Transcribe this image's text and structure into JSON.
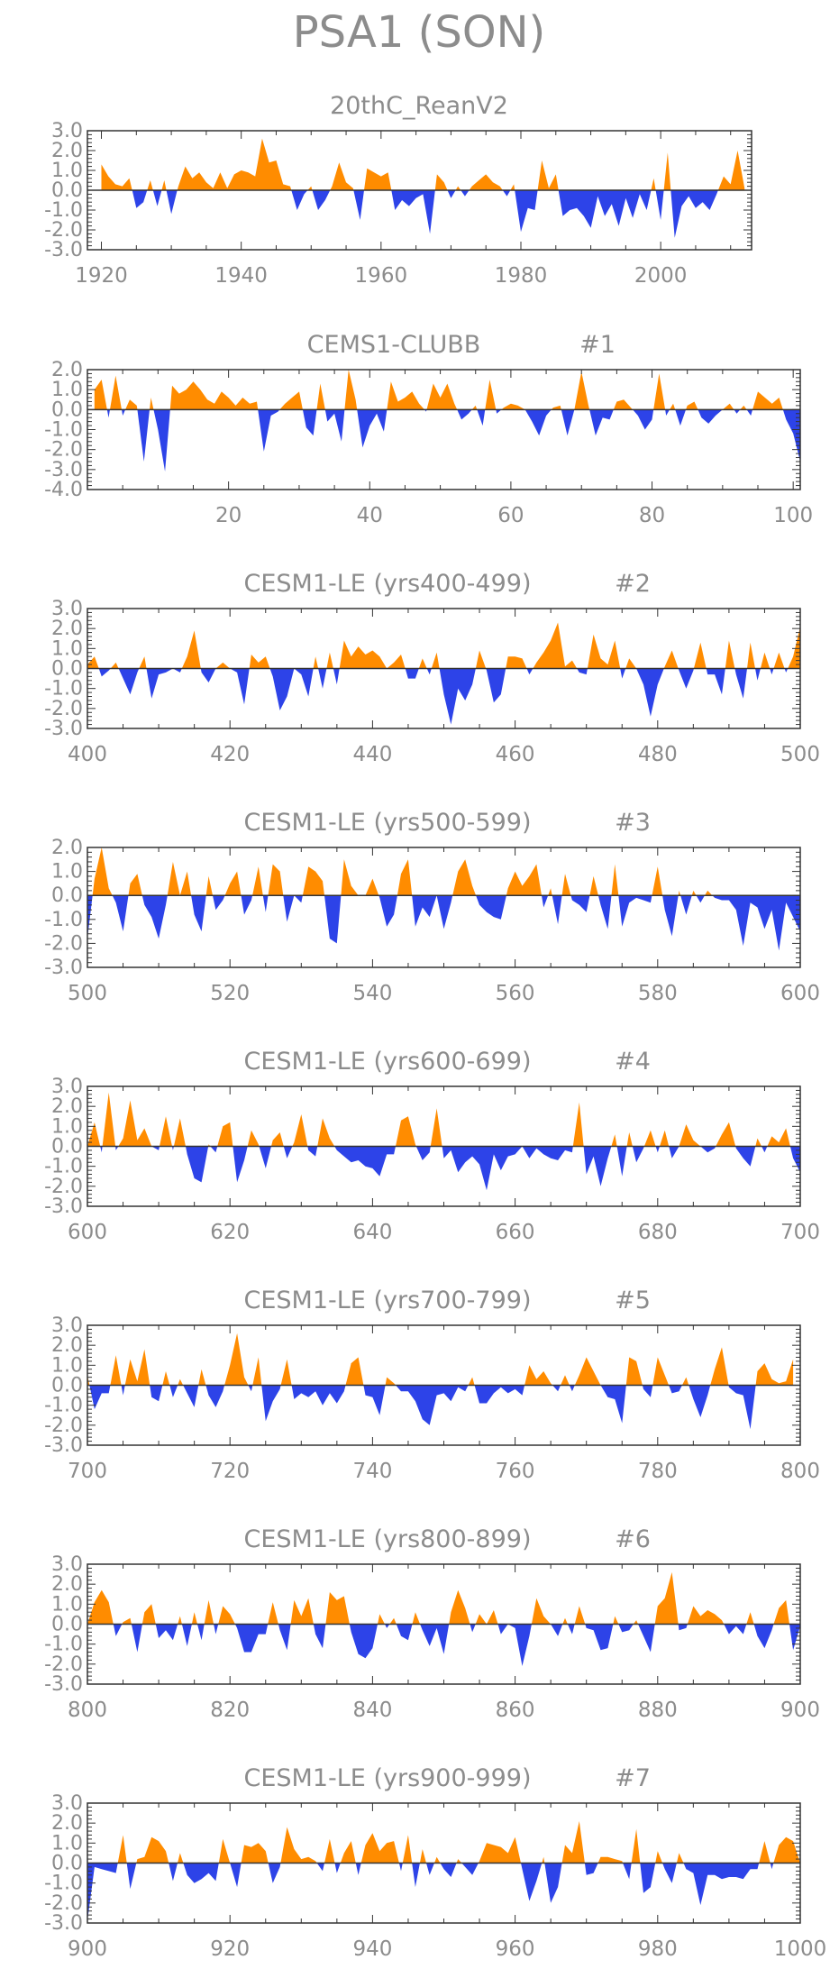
{
  "figure_title": "PSA1 (SON)",
  "colors": {
    "positive": "#ff8c00",
    "negative": "#2d43e8",
    "text": "#8c8c8c",
    "axis": "#333333"
  },
  "chart_data": [
    {
      "type": "area",
      "title": "20thC_ReanV2",
      "xlim": [
        1918,
        2013
      ],
      "ylim": [
        -3.0,
        3.0
      ],
      "yticks": [
        "3.0",
        "2.0",
        "1.0",
        "0.0",
        "-1.0",
        "-2.0",
        "-3.0"
      ],
      "ytick_values": [
        3,
        2,
        1,
        0,
        -1,
        -2,
        -3
      ],
      "xticks": [
        "1920",
        "1940",
        "1960",
        "1980",
        "2000"
      ],
      "xtick_values": [
        1920,
        1940,
        1960,
        1980,
        2000
      ],
      "x_start": 1920,
      "values": [
        1.3,
        0.7,
        0.3,
        0.2,
        0.6,
        -0.9,
        -0.6,
        0.5,
        -0.8,
        0.5,
        -1.2,
        0.2,
        1.2,
        0.6,
        0.9,
        0.4,
        0.1,
        0.9,
        0.1,
        0.8,
        1.0,
        0.9,
        0.7,
        2.6,
        1.4,
        1.5,
        0.3,
        0.2,
        -1.0,
        -0.2,
        0.2,
        -1.0,
        -0.5,
        0.2,
        1.4,
        0.4,
        0.1,
        -1.5,
        1.1,
        0.9,
        0.7,
        0.9,
        -1.0,
        -0.5,
        -0.8,
        -0.4,
        -0.2,
        -2.2,
        0.8,
        0.4,
        -0.4,
        0.2,
        -0.3,
        0.2,
        0.5,
        0.8,
        0.4,
        0.2,
        -0.3,
        0.3,
        -2.1,
        -0.9,
        -1.0,
        1.5,
        0.1,
        0.8,
        -1.3,
        -1.0,
        -0.9,
        -1.3,
        -1.9,
        -0.3,
        -1.3,
        -0.7,
        -1.8,
        -0.4,
        -1.4,
        -0.2,
        -1.0,
        0.6,
        -1.5,
        1.9,
        -2.4,
        -0.8,
        -0.3,
        -0.9,
        -0.6,
        -1.0,
        -0.2,
        0.7,
        0.3,
        2.0,
        0.1
      ]
    },
    {
      "type": "area",
      "title": "CEMS1-CLUBB",
      "label": "#1",
      "xlim": [
        0,
        101
      ],
      "ylim": [
        -4.0,
        2.0
      ],
      "yticks": [
        "2.0",
        "1.0",
        "0.0",
        "-1.0",
        "-2.0",
        "-3.0",
        "-4.0"
      ],
      "ytick_values": [
        2,
        1,
        0,
        -1,
        -2,
        -3,
        -4
      ],
      "xticks": [
        "20",
        "40",
        "60",
        "80",
        "100"
      ],
      "xtick_values": [
        20,
        40,
        60,
        80,
        100
      ],
      "x_start": 1,
      "values": [
        1.0,
        1.5,
        -0.4,
        1.7,
        -0.3,
        0.5,
        0.2,
        -2.6,
        0.6,
        -1.0,
        -3.1,
        1.2,
        0.8,
        1.0,
        1.4,
        1.0,
        0.5,
        0.3,
        0.9,
        0.6,
        0.2,
        0.6,
        0.3,
        0.4,
        -2.1,
        -0.3,
        -0.1,
        0.3,
        0.6,
        0.9,
        -0.9,
        -1.3,
        1.3,
        -0.6,
        -0.2,
        -1.6,
        2.0,
        0.5,
        -1.9,
        -0.8,
        -0.2,
        -1.1,
        1.4,
        0.4,
        0.6,
        0.9,
        0.3,
        -0.1,
        1.3,
        0.6,
        1.3,
        0.3,
        -0.5,
        -0.2,
        0.2,
        -0.8,
        1.5,
        -0.2,
        0.1,
        0.3,
        0.2,
        0.0,
        -0.6,
        -1.3,
        -0.3,
        0.1,
        0.2,
        -1.3,
        0.0,
        1.9,
        0.2,
        -1.3,
        -0.4,
        -0.5,
        0.4,
        0.5,
        0.1,
        -0.3,
        -1.0,
        -0.5,
        1.8,
        -0.3,
        0.3,
        -0.8,
        0.2,
        0.4,
        -0.4,
        -0.7,
        -0.3,
        0.0,
        0.3,
        -0.2,
        0.2,
        -0.3,
        0.9,
        0.6,
        0.3,
        0.6,
        -0.5,
        -1.2,
        -2.6
      ]
    },
    {
      "type": "area",
      "title": "CESM1-LE (yrs400-499)",
      "label": "#2",
      "xlim": [
        400,
        500
      ],
      "ylim": [
        -3.0,
        3.0
      ],
      "yticks": [
        "3.0",
        "2.0",
        "1.0",
        "0.0",
        "-1.0",
        "-2.0",
        "-3.0"
      ],
      "ytick_values": [
        3,
        2,
        1,
        0,
        -1,
        -2,
        -3
      ],
      "xticks": [
        "400",
        "420",
        "440",
        "460",
        "480",
        "500"
      ],
      "xtick_values": [
        400,
        420,
        440,
        460,
        480,
        500
      ],
      "x_start": 400,
      "values": [
        0.2,
        0.6,
        -0.4,
        -0.1,
        0.3,
        -0.5,
        -1.3,
        -0.2,
        0.6,
        -1.5,
        -0.3,
        -0.2,
        0.0,
        -0.2,
        0.6,
        1.9,
        -0.2,
        -0.7,
        0.0,
        0.3,
        0.0,
        -0.2,
        -1.8,
        0.7,
        0.3,
        0.6,
        -0.4,
        -2.1,
        -1.4,
        0.0,
        -0.3,
        -1.4,
        0.6,
        -1.0,
        0.8,
        -0.8,
        1.4,
        0.6,
        1.1,
        0.7,
        0.9,
        0.6,
        0.0,
        0.3,
        0.7,
        -0.5,
        -0.5,
        0.5,
        -0.3,
        0.8,
        -1.3,
        -2.8,
        -1.0,
        -1.6,
        -0.8,
        0.9,
        -0.1,
        -1.7,
        -1.3,
        0.6,
        0.6,
        0.5,
        -0.3,
        0.3,
        0.8,
        1.4,
        2.3,
        0.1,
        0.4,
        -0.2,
        -0.3,
        1.7,
        0.5,
        0.2,
        1.4,
        -0.5,
        0.5,
        0.0,
        -0.8,
        -2.4,
        -0.8,
        0.1,
        0.9,
        -0.1,
        -1.0,
        -0.1,
        1.3,
        -0.3,
        -0.3,
        -1.3,
        1.4,
        -0.3,
        -1.5,
        1.3,
        -0.6,
        0.8,
        -0.3,
        0.8,
        -0.2,
        0.6,
        2.1
      ]
    },
    {
      "type": "area",
      "title": "CESM1-LE (yrs500-599)",
      "label": "#3",
      "xlim": [
        500,
        600
      ],
      "ylim": [
        -3.0,
        2.0
      ],
      "yticks": [
        "2.0",
        "1.0",
        "0.0",
        "-1.0",
        "-2.0",
        "-3.0"
      ],
      "ytick_values": [
        2,
        1,
        0,
        -1,
        -2,
        -3
      ],
      "xticks": [
        "500",
        "520",
        "540",
        "560",
        "580",
        "600"
      ],
      "xtick_values": [
        500,
        520,
        540,
        560,
        580,
        600
      ],
      "x_start": 500,
      "values": [
        -1.8,
        0.7,
        2.0,
        0.3,
        -0.3,
        -1.5,
        0.5,
        0.9,
        -0.4,
        -0.9,
        -1.8,
        -0.4,
        1.4,
        0.0,
        1.0,
        -0.8,
        -1.5,
        0.8,
        -0.6,
        -0.2,
        0.5,
        1.0,
        -0.8,
        -0.2,
        1.2,
        -0.7,
        1.3,
        1.0,
        -1.1,
        0.0,
        -0.3,
        1.2,
        1.0,
        0.6,
        -1.8,
        -2.0,
        1.5,
        0.4,
        0.0,
        0.0,
        0.7,
        -0.1,
        -1.3,
        -0.8,
        0.9,
        1.5,
        -1.3,
        -0.5,
        -0.9,
        0.0,
        -1.4,
        -0.3,
        1.0,
        1.5,
        0.4,
        -0.4,
        -0.7,
        -0.9,
        -1.0,
        0.3,
        1.0,
        0.4,
        0.8,
        1.3,
        -0.5,
        0.3,
        -1.2,
        0.9,
        -0.2,
        -0.4,
        -0.7,
        0.8,
        -0.4,
        -1.4,
        1.3,
        -1.3,
        -0.3,
        -0.1,
        -0.2,
        -0.3,
        1.2,
        -0.6,
        -1.7,
        0.2,
        -0.8,
        0.2,
        -0.3,
        0.2,
        -0.1,
        -0.2,
        -0.2,
        -0.6,
        -2.1,
        -0.3,
        -0.5,
        -1.4,
        -0.6,
        -2.3,
        -0.3,
        -0.9,
        -1.5
      ]
    },
    {
      "type": "area",
      "title": "CESM1-LE (yrs600-699)",
      "label": "#4",
      "xlim": [
        600,
        700
      ],
      "ylim": [
        -3.0,
        3.0
      ],
      "yticks": [
        "3.0",
        "2.0",
        "1.0",
        "0.0",
        "-1.0",
        "-2.0",
        "-3.0"
      ],
      "ytick_values": [
        3,
        2,
        1,
        0,
        -1,
        -2,
        -3
      ],
      "xticks": [
        "600",
        "620",
        "640",
        "660",
        "680",
        "700"
      ],
      "xtick_values": [
        600,
        620,
        640,
        660,
        680,
        700
      ],
      "x_start": 600,
      "values": [
        0.0,
        1.2,
        -0.3,
        2.7,
        -0.2,
        0.4,
        2.3,
        0.3,
        0.9,
        0.0,
        -0.2,
        1.5,
        -0.2,
        1.4,
        -0.4,
        -1.6,
        -1.8,
        0.1,
        -0.3,
        1.0,
        1.2,
        -1.8,
        -0.7,
        0.8,
        0.1,
        -1.1,
        0.3,
        0.7,
        -0.6,
        0.2,
        1.6,
        -0.2,
        -0.5,
        1.4,
        0.4,
        -0.2,
        -0.5,
        -0.8,
        -0.7,
        -1.0,
        -1.1,
        -1.5,
        -0.4,
        -0.4,
        1.3,
        1.5,
        0.1,
        -0.7,
        -0.3,
        1.9,
        -0.6,
        -0.2,
        -1.3,
        -0.8,
        -0.5,
        -0.9,
        -2.2,
        -0.4,
        -1.2,
        -0.5,
        -0.4,
        0.0,
        -0.6,
        -0.1,
        -0.4,
        -0.6,
        -0.7,
        -0.2,
        -0.3,
        2.2,
        -1.4,
        -0.5,
        -2.0,
        -0.6,
        0.6,
        -1.5,
        0.7,
        -0.8,
        -0.1,
        0.8,
        -0.3,
        0.8,
        -0.6,
        0.0,
        1.1,
        0.3,
        0.0,
        -0.3,
        -0.1,
        0.6,
        1.2,
        -0.1,
        -0.6,
        -1.0,
        0.4,
        -0.3,
        0.5,
        0.2,
        0.9,
        -0.6,
        -1.3
      ]
    },
    {
      "type": "area",
      "title": "CESM1-LE (yrs700-799)",
      "label": "#5",
      "xlim": [
        700,
        800
      ],
      "ylim": [
        -3.0,
        3.0
      ],
      "yticks": [
        "3.0",
        "2.0",
        "1.0",
        "0.0",
        "-1.0",
        "-2.0",
        "-3.0"
      ],
      "ytick_values": [
        3,
        2,
        1,
        0,
        -1,
        -2,
        -3
      ],
      "xticks": [
        "700",
        "720",
        "740",
        "760",
        "780",
        "800"
      ],
      "xtick_values": [
        700,
        720,
        740,
        760,
        780,
        800
      ],
      "x_start": 700,
      "values": [
        0.5,
        -1.2,
        -0.4,
        -0.4,
        1.5,
        -0.5,
        1.3,
        0.2,
        1.8,
        -0.6,
        -0.8,
        0.7,
        -0.6,
        0.3,
        -0.4,
        -1.1,
        0.8,
        -0.5,
        -1.1,
        -0.3,
        1.0,
        2.6,
        0.4,
        -0.3,
        1.4,
        -1.8,
        -0.8,
        -0.2,
        1.3,
        -0.7,
        -0.4,
        -0.6,
        -0.3,
        -1.0,
        -0.4,
        -0.9,
        -0.3,
        1.1,
        1.4,
        -0.5,
        -0.6,
        -1.5,
        0.4,
        0.1,
        -0.3,
        -0.3,
        -0.8,
        -1.7,
        -2.0,
        -0.5,
        -0.4,
        -0.8,
        -0.1,
        -0.3,
        0.4,
        -0.9,
        -0.9,
        -0.4,
        -0.1,
        -0.4,
        -0.2,
        -0.5,
        1.0,
        0.3,
        0.7,
        0.1,
        -0.3,
        0.5,
        -0.3,
        0.5,
        1.4,
        0.7,
        0.0,
        -0.6,
        -0.7,
        -1.9,
        1.4,
        1.2,
        -0.2,
        -0.6,
        1.4,
        0.5,
        -0.4,
        -0.3,
        0.4,
        -0.7,
        -1.6,
        -0.5,
        0.8,
        1.9,
        -0.1,
        -0.4,
        -0.5,
        -2.2,
        0.7,
        1.1,
        0.3,
        0.1,
        0.2,
        1.3
      ]
    },
    {
      "type": "area",
      "title": "CESM1-LE (yrs800-899)",
      "label": "#6",
      "xlim": [
        800,
        900
      ],
      "ylim": [
        -3.0,
        3.0
      ],
      "yticks": [
        "3.0",
        "2.0",
        "1.0",
        "0.0",
        "-1.0",
        "-2.0",
        "-3.0"
      ],
      "ytick_values": [
        3,
        2,
        1,
        0,
        -1,
        -2,
        -3
      ],
      "xticks": [
        "800",
        "820",
        "840",
        "860",
        "880",
        "900"
      ],
      "xtick_values": [
        800,
        820,
        840,
        860,
        880,
        900
      ],
      "x_start": 800,
      "values": [
        0.0,
        1.1,
        1.7,
        1.1,
        -0.6,
        0.1,
        0.3,
        -1.4,
        0.6,
        1.0,
        -0.7,
        -0.3,
        -0.8,
        0.4,
        -1.1,
        0.6,
        -0.8,
        1.2,
        -0.5,
        0.9,
        0.5,
        -0.2,
        -1.4,
        -1.4,
        -0.5,
        -0.5,
        1.1,
        -0.3,
        -1.3,
        1.2,
        0.4,
        1.3,
        -0.5,
        -1.2,
        1.6,
        1.2,
        1.4,
        -0.4,
        -1.5,
        -1.7,
        -1.2,
        0.5,
        -0.2,
        0.3,
        -0.6,
        -0.8,
        0.6,
        -0.3,
        -1.1,
        -0.2,
        -1.5,
        0.6,
        1.7,
        0.8,
        -0.4,
        0.5,
        0.0,
        0.7,
        -0.5,
        0.0,
        -0.2,
        -2.1,
        -0.6,
        1.3,
        0.4,
        0.0,
        -0.6,
        0.3,
        -0.5,
        0.9,
        -0.2,
        -0.3,
        -1.3,
        -1.2,
        0.4,
        -0.4,
        -0.3,
        0.2,
        -0.6,
        -1.4,
        0.9,
        1.3,
        2.6,
        -0.3,
        -0.2,
        0.9,
        0.4,
        0.7,
        0.5,
        0.2,
        -0.5,
        -0.1,
        -0.5,
        0.6,
        -0.6,
        -1.2,
        -0.3,
        0.8,
        1.2,
        -1.3,
        -0.1
      ]
    },
    {
      "type": "area",
      "title": "CESM1-LE (yrs900-999)",
      "label": "#7",
      "xlim": [
        900,
        1000
      ],
      "ylim": [
        -3.0,
        3.0
      ],
      "yticks": [
        "3.0",
        "2.0",
        "1.0",
        "0.0",
        "-1.0",
        "-2.0",
        "-3.0"
      ],
      "ytick_values": [
        3,
        2,
        1,
        0,
        -1,
        -2,
        -3
      ],
      "xticks": [
        "900",
        "920",
        "940",
        "960",
        "980",
        "1000"
      ],
      "xtick_values": [
        900,
        920,
        940,
        960,
        980,
        1000
      ],
      "x_start": 900,
      "values": [
        -2.9,
        -0.2,
        -0.3,
        -0.4,
        -0.5,
        1.4,
        -1.3,
        0.2,
        0.3,
        1.3,
        1.1,
        0.6,
        -0.9,
        0.5,
        -0.6,
        -1.0,
        -0.8,
        -0.5,
        -0.9,
        1.2,
        0.0,
        -1.2,
        0.9,
        0.8,
        1.0,
        0.6,
        -1.0,
        -0.2,
        1.8,
        0.7,
        0.2,
        0.3,
        0.1,
        -0.4,
        1.2,
        -0.5,
        0.5,
        1.1,
        -0.6,
        0.9,
        1.5,
        0.6,
        1.0,
        1.1,
        -0.4,
        1.4,
        -1.2,
        0.7,
        -0.6,
        0.3,
        -0.3,
        -0.7,
        0.2,
        -0.2,
        -0.6,
        0.1,
        1.0,
        0.9,
        0.8,
        0.5,
        1.3,
        -0.3,
        -1.9,
        -0.9,
        0.3,
        -2.0,
        -1.2,
        0.9,
        0.5,
        2.1,
        -0.6,
        -0.5,
        0.3,
        0.3,
        0.2,
        0.1,
        -0.8,
        1.7,
        -1.5,
        -1.2,
        0.6,
        -0.3,
        -1.0,
        0.5,
        -0.3,
        -0.5,
        -2.1,
        -0.6,
        -0.6,
        -0.8,
        -0.7,
        -0.7,
        -0.8,
        -0.3,
        -0.3,
        1.1,
        -0.3,
        0.9,
        1.3,
        1.1,
        0.0
      ]
    }
  ]
}
